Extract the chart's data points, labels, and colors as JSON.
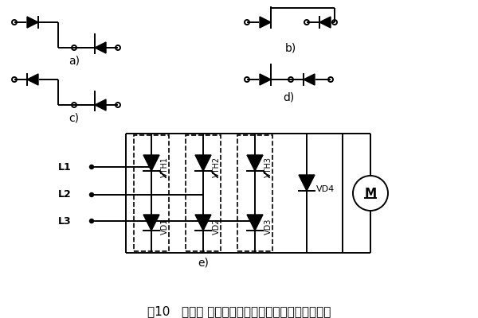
{
  "title": "图10   晶闸管 整流管联臂模块三相半控桥式整流电路",
  "title_fontsize": 11,
  "background": "#ffffff",
  "labels": {
    "a": "a)",
    "b": "b)",
    "c": "c)",
    "d": "d)",
    "e": "e)",
    "L1": "L1",
    "L2": "L2",
    "L3": "L3",
    "VTH1": "VTH1",
    "VTH2": "VTH2",
    "VTH3": "VTH3",
    "VD1": "VD1",
    "VD2": "VD2",
    "VD3": "VD3",
    "VD4": "VD4",
    "M": "M"
  }
}
